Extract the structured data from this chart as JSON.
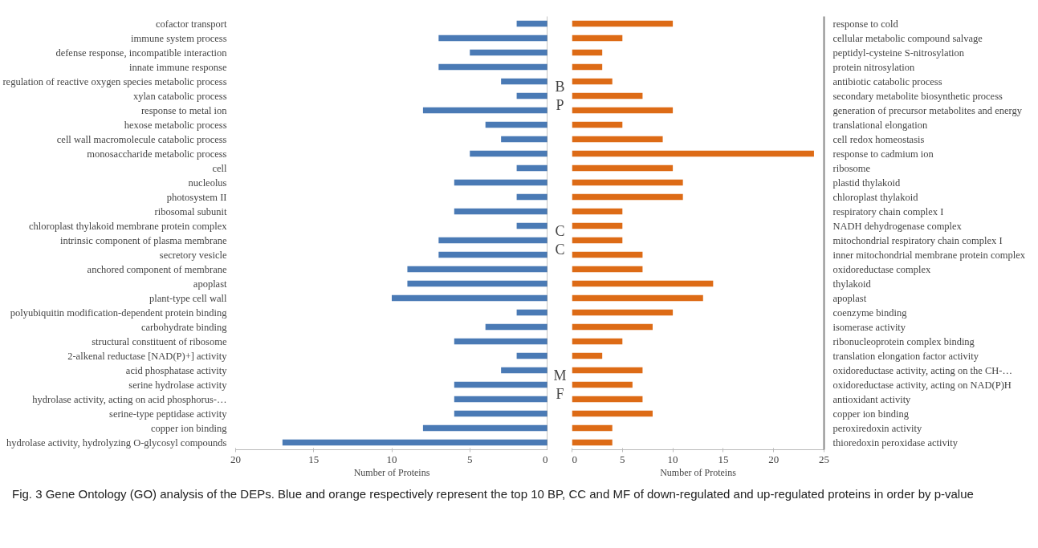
{
  "chart_data": [
    {
      "type": "bar",
      "orientation": "horizontal",
      "xlabel": "Number of Proteins",
      "xlim": [
        20,
        0
      ],
      "xticks": [
        20,
        15,
        10,
        5,
        0
      ],
      "grid": false,
      "categories": [
        "cofactor transport",
        "immune system process",
        "defense response, incompatible interaction",
        "innate immune response",
        "regulation of reactive oxygen species metabolic process",
        "xylan catabolic process",
        "response to metal ion",
        "hexose metabolic process",
        "cell wall macromolecule catabolic process",
        "monosaccharide metabolic process",
        "cell",
        "nucleolus",
        "photosystem II",
        "ribosomal subunit",
        "chloroplast thylakoid membrane protein complex",
        "intrinsic component of plasma membrane",
        "secretory vesicle",
        "anchored component of membrane",
        "apoplast",
        "plant-type cell wall",
        "polyubiquitin modification-dependent protein binding",
        "carbohydrate binding",
        "structural constituent of ribosome",
        "2-alkenal reductase [NAD(P)+] activity",
        "acid phosphatase activity",
        "serine hydrolase activity",
        "hydrolase activity, acting on acid phosphorus-…",
        "serine-type peptidase activity",
        "copper ion binding",
        "hydrolase activity, hydrolyzing O-glycosyl compounds"
      ],
      "series": [
        {
          "color": "#4a7ab5",
          "values": [
            2,
            7,
            5,
            7,
            3,
            2,
            8,
            4,
            3,
            5,
            2,
            6,
            2,
            6,
            2,
            7,
            7,
            9,
            9,
            10,
            2,
            4,
            6,
            2,
            3,
            6,
            6,
            6,
            8,
            17
          ]
        }
      ],
      "annotations": [
        "BP",
        "CC",
        "MF"
      ]
    },
    {
      "type": "bar",
      "orientation": "horizontal",
      "xlabel": "Number of Proteins",
      "xlim": [
        0,
        25
      ],
      "xticks": [
        0,
        5,
        10,
        15,
        20,
        25
      ],
      "grid": false,
      "categories": [
        "response to cold",
        "cellular metabolic compound salvage",
        "peptidyl-cysteine S-nitrosylation",
        "protein nitrosylation",
        "antibiotic catabolic process",
        "secondary metabolite biosynthetic process",
        "generation of precursor metabolites and energy",
        "translational elongation",
        "cell redox homeostasis",
        "response to cadmium ion",
        "ribosome",
        "plastid thylakoid",
        "chloroplast thylakoid",
        "respiratory chain complex I",
        "NADH dehydrogenase complex",
        "mitochondrial respiratory chain complex I",
        "inner mitochondrial membrane protein complex",
        "oxidoreductase complex",
        "thylakoid",
        "apoplast",
        "coenzyme binding",
        "isomerase activity",
        "ribonucleoprotein complex binding",
        "translation elongation factor activity",
        "oxidoreductase activity, acting on the CH-…",
        "oxidoreductase activity, acting on NAD(P)H",
        "antioxidant activity",
        "copper ion binding",
        "peroxiredoxin activity",
        "thioredoxin peroxidase activity"
      ],
      "series": [
        {
          "color": "#dd6b16",
          "values": [
            10,
            5,
            3,
            3,
            4,
            7,
            10,
            5,
            9,
            24,
            10,
            11,
            11,
            5,
            5,
            5,
            7,
            7,
            14,
            13,
            10,
            8,
            5,
            3,
            7,
            6,
            7,
            8,
            4,
            4
          ]
        }
      ],
      "annotations": [
        "Fig. 3  Gene Ontology (GO) analysis of the DEPs. Blue and orange respectively represent the top 10 BP, CC and MF of down-regulated and up-regulated proteins in order by p-value"
      ]
    }
  ]
}
